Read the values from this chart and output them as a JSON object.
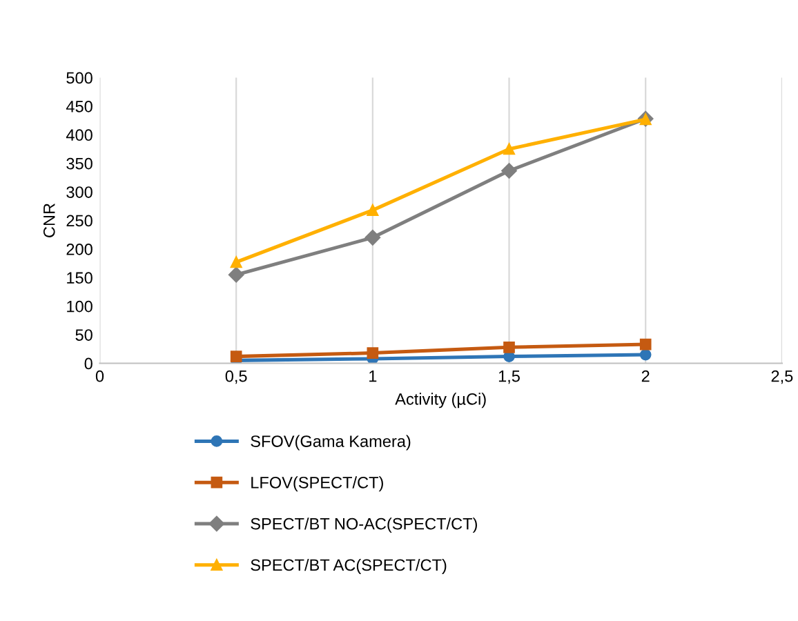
{
  "chart_data": {
    "type": "line",
    "xlabel": "Activity (µCi)",
    "ylabel": "CNR",
    "x": [
      0.5,
      1,
      1.5,
      2
    ],
    "xlim": [
      0,
      2.5
    ],
    "xticks": [
      {
        "value": 0,
        "label": "0"
      },
      {
        "value": 0.5,
        "label": "0,5"
      },
      {
        "value": 1,
        "label": "1"
      },
      {
        "value": 1.5,
        "label": "1,5"
      },
      {
        "value": 2,
        "label": "2"
      },
      {
        "value": 2.5,
        "label": "2,5"
      }
    ],
    "ylim": [
      0,
      500
    ],
    "yticks": [
      0,
      50,
      100,
      150,
      200,
      250,
      300,
      350,
      400,
      450,
      500
    ],
    "grid": "x",
    "legend": "bottom",
    "line_style": "solid",
    "series": [
      {
        "name": "SFOV(Gama Kamera)",
        "color": "#2e75b6",
        "marker": "circle",
        "values": [
          5,
          8,
          12,
          15
        ]
      },
      {
        "name": "LFOV(SPECT/CT)",
        "color": "#c55a11",
        "marker": "square",
        "values": [
          12,
          18,
          28,
          33
        ]
      },
      {
        "name": "SPECT/BT NO-AC(SPECT/CT)",
        "color": "#7f7f7f",
        "marker": "diamond",
        "values": [
          155,
          220,
          337,
          428
        ]
      },
      {
        "name": "SPECT/BT AC(SPECT/CT)",
        "color": "#ffb000",
        "marker": "triangle",
        "values": [
          177,
          268,
          375,
          427
        ]
      }
    ]
  }
}
